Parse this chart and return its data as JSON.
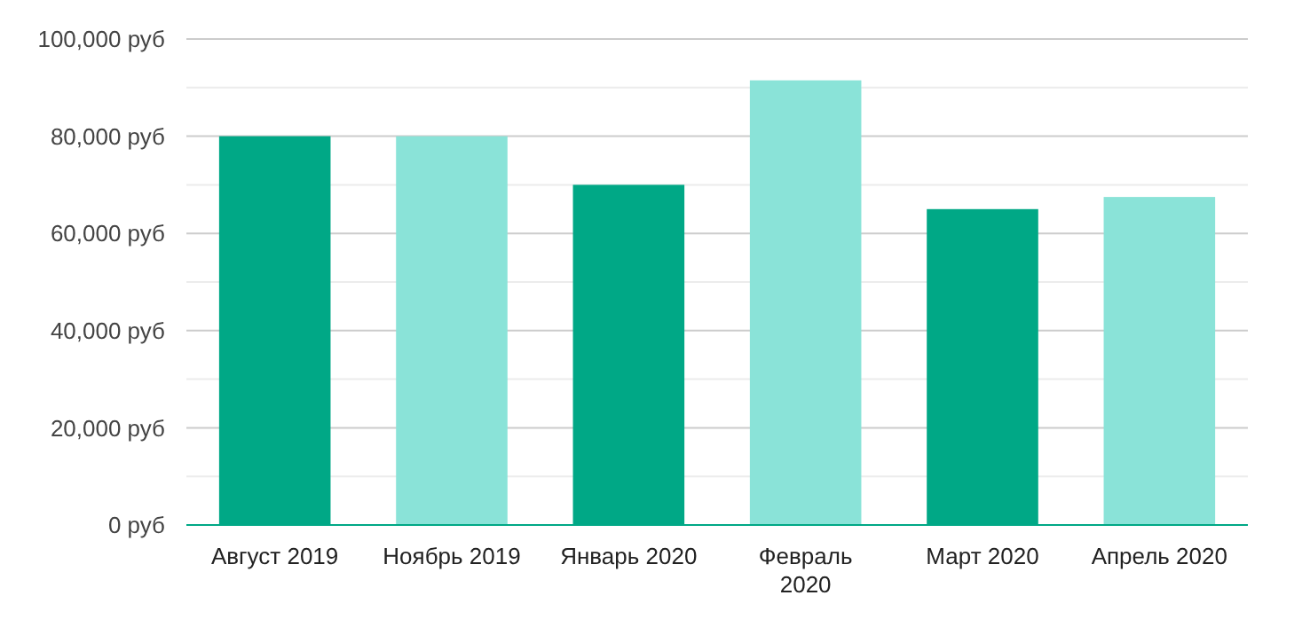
{
  "chart_data": {
    "type": "bar",
    "categories": [
      "Август 2019",
      "Ноябрь 2019",
      "Январь 2020",
      "Февраль 2020",
      "Март 2020",
      "Апрель 2020"
    ],
    "values": [
      80000,
      80000,
      70000,
      91500,
      65000,
      67500
    ],
    "colors": [
      "#00a886",
      "#8ae3d8",
      "#00a886",
      "#8ae3d8",
      "#00a886",
      "#8ae3d8"
    ],
    "ylim": [
      0,
      100000
    ],
    "yticks": [
      {
        "value": 0,
        "label": "0 руб"
      },
      {
        "value": 10000,
        "label": null
      },
      {
        "value": 20000,
        "label": "20,000 руб"
      },
      {
        "value": 30000,
        "label": null
      },
      {
        "value": 40000,
        "label": "40,000 руб"
      },
      {
        "value": 50000,
        "label": null
      },
      {
        "value": 60000,
        "label": "60,000 руб"
      },
      {
        "value": 70000,
        "label": null
      },
      {
        "value": 80000,
        "label": "80,000 руб"
      },
      {
        "value": 90000,
        "label": null
      },
      {
        "value": 100000,
        "label": "100,000 руб"
      }
    ],
    "grid": "y"
  }
}
